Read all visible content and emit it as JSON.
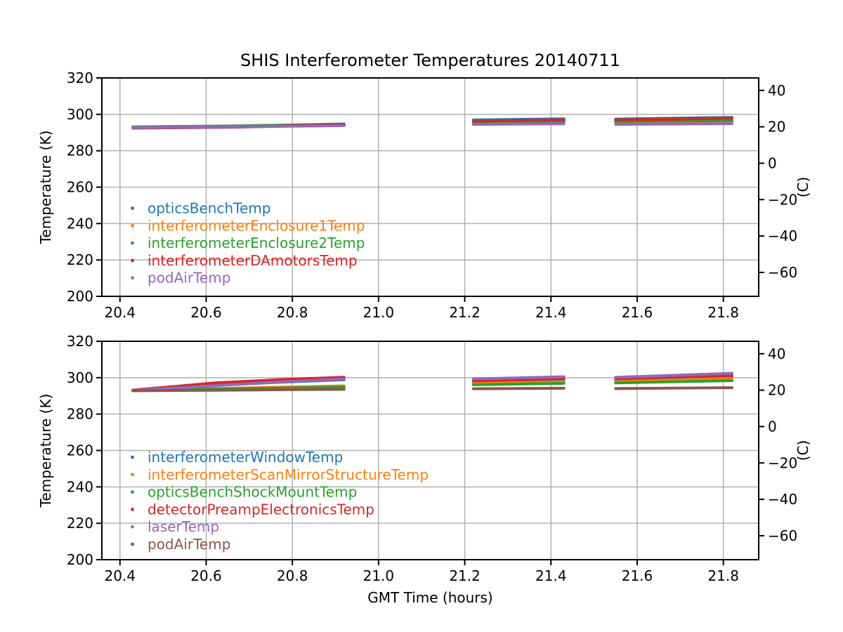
{
  "title": "SHIS Interferometer Temperatures 20140711",
  "chart_data": [
    {
      "type": "scatter",
      "title": "SHIS Interferometer Temperatures 20140711",
      "xlabel": "",
      "ylabel_left": "Temperature (K)",
      "ylabel_right": "(C)",
      "xlim": [
        20.358,
        21.882
      ],
      "ylim_kelvin": [
        200,
        320
      ],
      "grid": true,
      "grid_color": "#b0b0b0",
      "legend_position": "center-left, no frame, text colored per series",
      "xticks": [
        20.4,
        20.6,
        20.8,
        21.0,
        21.2,
        21.4,
        21.6,
        21.8
      ],
      "xtick_labels": [
        "20.4",
        "20.6",
        "20.8",
        "21.0",
        "21.2",
        "21.4",
        "21.6",
        "21.8"
      ],
      "yticks_left_kelvin": [
        200,
        220,
        240,
        260,
        280,
        300,
        320
      ],
      "ytick_left_labels": [
        "200",
        "220",
        "240",
        "260",
        "280",
        "300",
        "320"
      ],
      "yticks_right_celsius": [
        -60,
        -40,
        -20,
        0,
        20,
        40
      ],
      "ytick_right_labels": [
        "−60",
        "−40",
        "−20",
        "0",
        "20",
        "40"
      ],
      "series": [
        {
          "name": "opticsBenchTemp",
          "color": "#1f77b4",
          "segments": [
            [
              [
                20.43,
                293.0
              ],
              [
                20.68,
                293.6
              ],
              [
                20.92,
                294.7
              ]
            ],
            [
              [
                21.22,
                296.9
              ],
              [
                21.43,
                297.5
              ]
            ],
            [
              [
                21.55,
                297.4
              ],
              [
                21.82,
                298.3
              ]
            ]
          ]
        },
        {
          "name": "interferometerEnclosure1Temp",
          "color": "#ff7f0e",
          "segments": [
            [
              [
                20.43,
                292.9
              ],
              [
                20.68,
                293.4
              ],
              [
                20.92,
                294.2
              ]
            ],
            [
              [
                21.22,
                295.5
              ],
              [
                21.43,
                295.8
              ]
            ],
            [
              [
                21.55,
                295.7
              ],
              [
                21.82,
                296.0
              ]
            ]
          ]
        },
        {
          "name": "interferometerEnclosure2Temp",
          "color": "#2ca02c",
          "segments": [
            [
              [
                20.43,
                293.1
              ],
              [
                20.68,
                293.7
              ],
              [
                20.92,
                294.6
              ]
            ],
            [
              [
                21.22,
                295.8
              ],
              [
                21.43,
                296.1
              ]
            ],
            [
              [
                21.55,
                296.1
              ],
              [
                21.82,
                296.6
              ]
            ]
          ]
        },
        {
          "name": "interferometerDAmotorsTemp",
          "color": "#d62728",
          "segments": [
            [
              [
                20.43,
                292.4
              ],
              [
                20.68,
                293.0
              ],
              [
                20.92,
                294.4
              ]
            ],
            [
              [
                21.22,
                296.3
              ],
              [
                21.43,
                296.9
              ]
            ],
            [
              [
                21.55,
                296.9
              ],
              [
                21.82,
                297.9
              ]
            ]
          ]
        },
        {
          "name": "podAirTemp",
          "color": "#9467bd",
          "segments": [
            [
              [
                20.43,
                292.7
              ],
              [
                20.68,
                293.2
              ],
              [
                20.92,
                293.8
              ]
            ],
            [
              [
                21.22,
                294.5
              ],
              [
                21.43,
                294.8
              ]
            ],
            [
              [
                21.55,
                294.5
              ],
              [
                21.82,
                294.9
              ]
            ]
          ]
        }
      ]
    },
    {
      "type": "scatter",
      "title": "",
      "xlabel": "GMT Time (hours)",
      "ylabel_left": "Temperature (K)",
      "ylabel_right": "(C)",
      "xlim": [
        20.358,
        21.882
      ],
      "ylim_kelvin": [
        200,
        320
      ],
      "grid": true,
      "grid_color": "#b0b0b0",
      "legend_position": "center-left, no frame, text colored per series",
      "xticks": [
        20.4,
        20.6,
        20.8,
        21.0,
        21.2,
        21.4,
        21.6,
        21.8
      ],
      "xtick_labels": [
        "20.4",
        "20.6",
        "20.8",
        "21.0",
        "21.2",
        "21.4",
        "21.6",
        "21.8"
      ],
      "yticks_left_kelvin": [
        200,
        220,
        240,
        260,
        280,
        300,
        320
      ],
      "ytick_left_labels": [
        "200",
        "220",
        "240",
        "260",
        "280",
        "300",
        "320"
      ],
      "yticks_right_celsius": [
        -60,
        -40,
        -20,
        0,
        20,
        40
      ],
      "ytick_right_labels": [
        "−60",
        "−40",
        "−20",
        "0",
        "20",
        "40"
      ],
      "series": [
        {
          "name": "interferometerWindowTemp",
          "color": "#1f77b4",
          "segments": [
            [
              [
                20.43,
                293.1
              ],
              [
                20.62,
                295.9
              ],
              [
                20.78,
                297.6
              ],
              [
                20.92,
                298.9
              ]
            ],
            [
              [
                21.22,
                297.9
              ],
              [
                21.43,
                298.9
              ]
            ],
            [
              [
                21.55,
                298.7
              ],
              [
                21.82,
                300.2
              ]
            ]
          ]
        },
        {
          "name": "interferometerScanMirrorStructureTemp",
          "color": "#ff7f0e",
          "segments": [
            [
              [
                20.43,
                292.9
              ],
              [
                20.62,
                294.0
              ],
              [
                20.78,
                294.8
              ],
              [
                20.92,
                295.5
              ]
            ],
            [
              [
                21.22,
                296.8
              ],
              [
                21.43,
                297.7
              ]
            ],
            [
              [
                21.55,
                297.9
              ],
              [
                21.82,
                299.5
              ]
            ]
          ]
        },
        {
          "name": "opticsBenchShockMountTemp",
          "color": "#2ca02c",
          "segments": [
            [
              [
                20.43,
                293.0
              ],
              [
                20.62,
                293.8
              ],
              [
                20.78,
                294.3
              ],
              [
                20.92,
                294.8
              ]
            ],
            [
              [
                21.22,
                296.1
              ],
              [
                21.43,
                296.9
              ]
            ],
            [
              [
                21.55,
                297.1
              ],
              [
                21.82,
                298.4
              ]
            ]
          ]
        },
        {
          "name": "detectorPreampElectronicsTemp",
          "color": "#d62728",
          "segments": [
            [
              [
                20.43,
                293.2
              ],
              [
                20.62,
                297.1
              ],
              [
                20.78,
                299.0
              ],
              [
                20.92,
                300.2
              ]
            ],
            [
              [
                21.22,
                298.3
              ],
              [
                21.43,
                299.4
              ]
            ],
            [
              [
                21.55,
                299.4
              ],
              [
                21.82,
                301.2
              ]
            ]
          ]
        },
        {
          "name": "laserTemp",
          "color": "#9467bd",
          "segments": [
            [
              [
                20.43,
                293.0
              ],
              [
                20.62,
                295.6
              ],
              [
                20.78,
                297.7
              ],
              [
                20.92,
                299.3
              ]
            ],
            [
              [
                21.22,
                299.3
              ],
              [
                21.43,
                300.5
              ]
            ],
            [
              [
                21.55,
                300.2
              ],
              [
                21.82,
                302.4
              ]
            ]
          ]
        },
        {
          "name": "podAirTemp",
          "color": "#8c564b",
          "segments": [
            [
              [
                20.43,
                292.8
              ],
              [
                20.62,
                293.1
              ],
              [
                20.78,
                293.4
              ],
              [
                20.92,
                293.6
              ]
            ],
            [
              [
                21.22,
                293.9
              ],
              [
                21.43,
                294.2
              ]
            ],
            [
              [
                21.55,
                294.0
              ],
              [
                21.82,
                294.5
              ]
            ]
          ]
        }
      ]
    }
  ]
}
